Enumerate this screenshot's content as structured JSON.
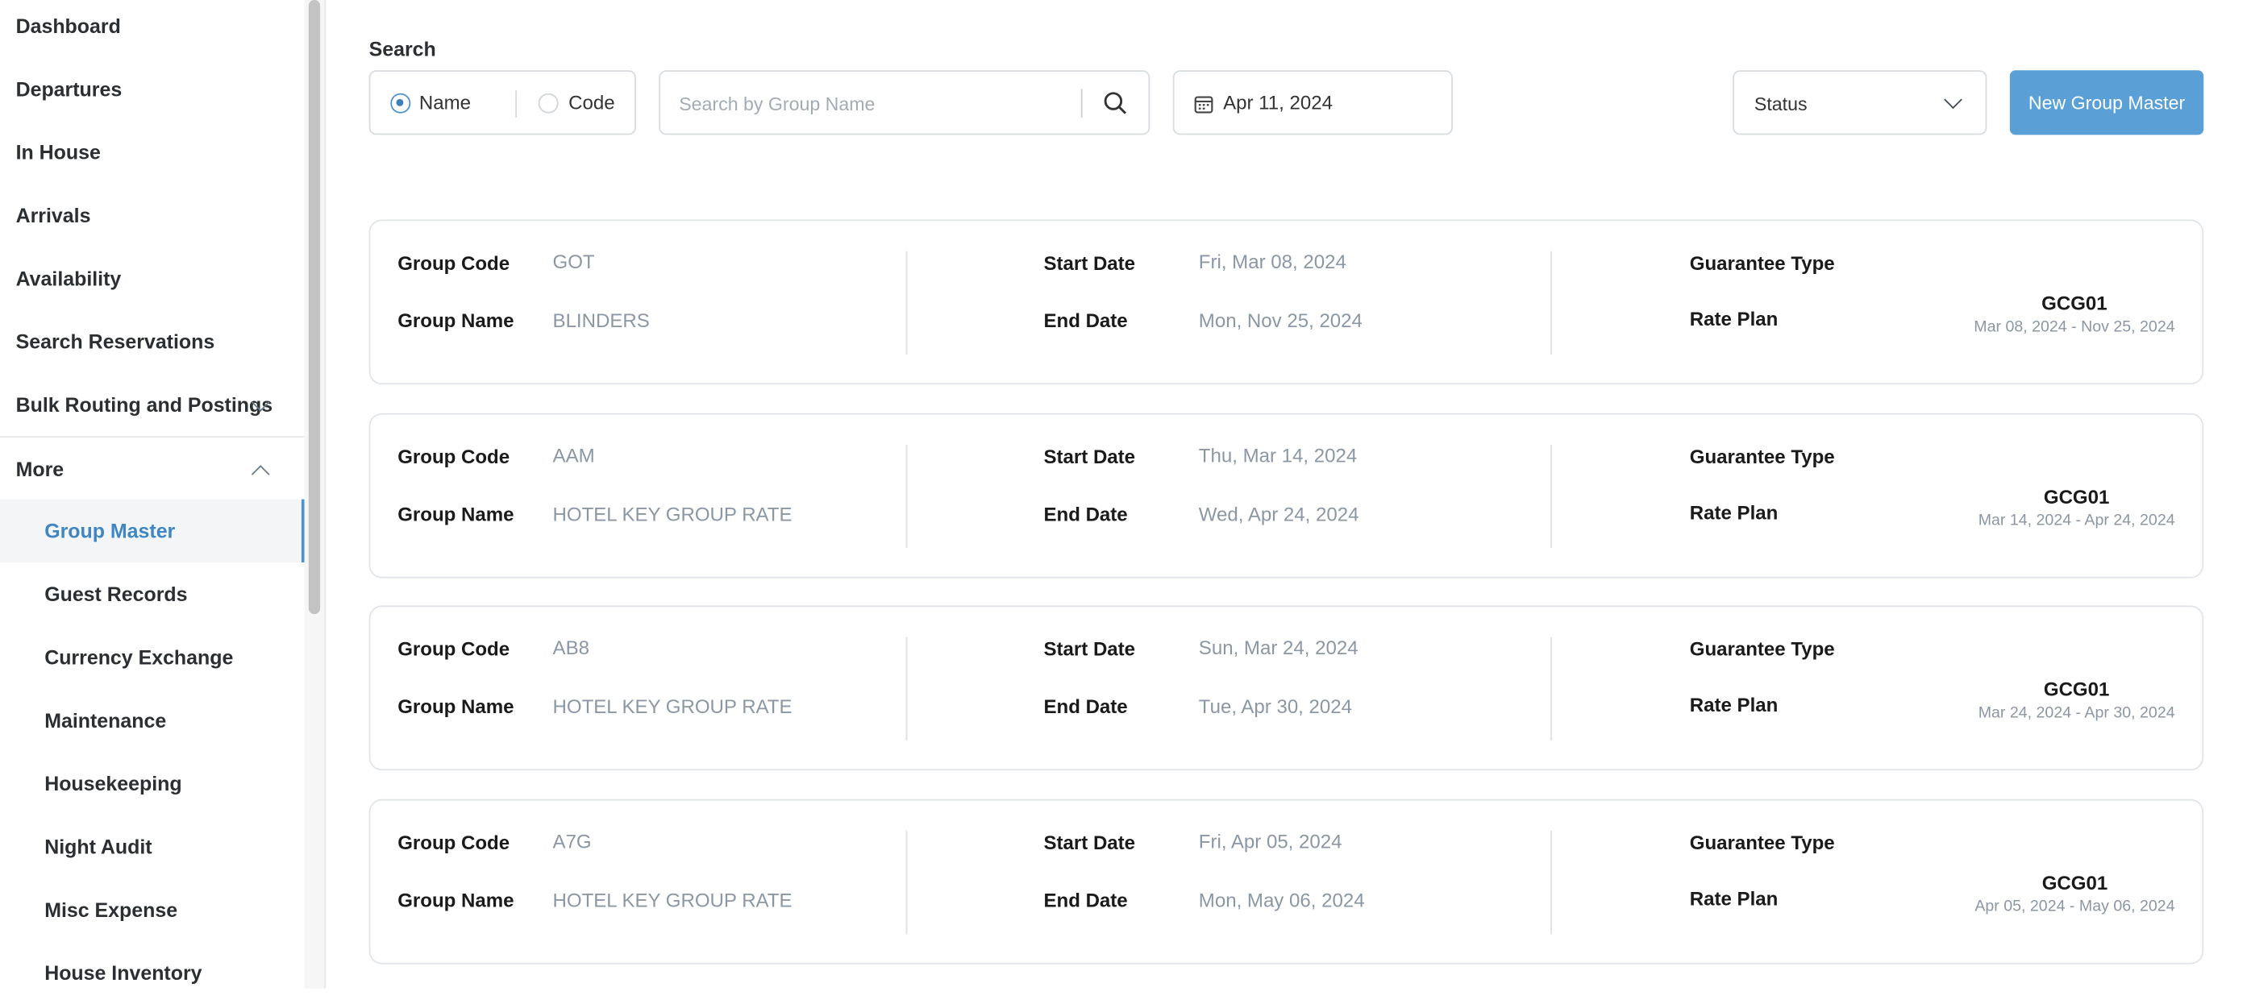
{
  "sidebar": {
    "items": [
      {
        "label": "Dashboard"
      },
      {
        "label": "Departures"
      },
      {
        "label": "In House"
      },
      {
        "label": "Arrivals"
      },
      {
        "label": "Availability"
      },
      {
        "label": "Search Reservations"
      },
      {
        "label": "Bulk Routing and Postings",
        "icon": "chevron-down-icon"
      },
      {
        "label": "More",
        "icon": "chevron-up-icon"
      }
    ],
    "sub_items": [
      {
        "label": "Group Master",
        "active": true
      },
      {
        "label": "Guest Records"
      },
      {
        "label": "Currency Exchange"
      },
      {
        "label": "Maintenance"
      },
      {
        "label": "Housekeeping"
      },
      {
        "label": "Night Audit"
      },
      {
        "label": "Misc Expense"
      },
      {
        "label": "House Inventory"
      }
    ]
  },
  "toolbar": {
    "search_label": "Search",
    "radio_name": "Name",
    "radio_code": "Code",
    "selected": "Name",
    "search_placeholder": "Search by Group Name",
    "date": "Apr 11, 2024",
    "status": "Status",
    "new_button": "New Group Master"
  },
  "colors": {
    "accent": "#5aa0d6",
    "active_nav": "#3f86c4"
  },
  "labels": {
    "group_code": "Group Code",
    "group_name": "Group Name",
    "start_date": "Start Date",
    "end_date": "End Date",
    "guarantee_type": "Guarantee Type",
    "rate_plan": "Rate Plan"
  },
  "groups": [
    {
      "code": "GOT",
      "name": "BLINDERS",
      "start": "Fri, Mar 08, 2024",
      "end": "Mon, Nov 25, 2024",
      "guarantee": "",
      "rate_plan": "GCG01",
      "rate_range": "Mar 08, 2024 - Nov 25, 2024"
    },
    {
      "code": "AAM",
      "name": "HOTEL KEY GROUP RATE",
      "start": "Thu, Mar 14, 2024",
      "end": "Wed, Apr 24, 2024",
      "guarantee": "",
      "rate_plan": "GCG01",
      "rate_range": "Mar 14, 2024 - Apr 24, 2024"
    },
    {
      "code": "AB8",
      "name": "HOTEL KEY GROUP RATE",
      "start": "Sun, Mar 24, 2024",
      "end": "Tue, Apr 30, 2024",
      "guarantee": "",
      "rate_plan": "GCG01",
      "rate_range": "Mar 24, 2024 - Apr 30, 2024"
    },
    {
      "code": "A7G",
      "name": "HOTEL KEY GROUP RATE",
      "start": "Fri, Apr 05, 2024",
      "end": "Mon, May 06, 2024",
      "guarantee": "",
      "rate_plan": "GCG01",
      "rate_range": "Apr 05, 2024 - May 06, 2024"
    }
  ]
}
